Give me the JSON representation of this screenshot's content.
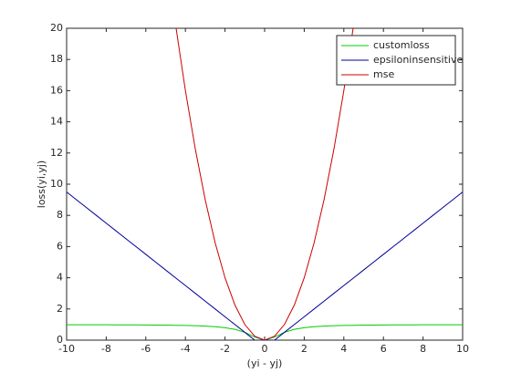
{
  "chart_data": {
    "type": "line",
    "xlabel": "(yi - yj)",
    "ylabel": "loss(yi,yj)",
    "x": [
      -10,
      -9.5,
      -9,
      -8.5,
      -8,
      -7.5,
      -7,
      -6.5,
      -6,
      -5.5,
      -5,
      -4.5,
      -4,
      -3.5,
      -3,
      -2.5,
      -2,
      -1.5,
      -1,
      -0.5,
      0,
      0.5,
      1,
      1.5,
      2,
      2.5,
      3,
      3.5,
      4,
      4.5,
      5,
      5.5,
      6,
      6.5,
      7,
      7.5,
      8,
      8.5,
      9,
      9.5,
      10
    ],
    "series": [
      {
        "name": "customloss",
        "color": "#00cc00",
        "values": [
          0.99,
          0.989,
          0.988,
          0.986,
          0.985,
          0.983,
          0.98,
          0.977,
          0.973,
          0.968,
          0.962,
          0.953,
          0.941,
          0.925,
          0.9,
          0.862,
          0.8,
          0.692,
          0.5,
          0.2,
          0,
          0.2,
          0.5,
          0.692,
          0.8,
          0.862,
          0.9,
          0.925,
          0.941,
          0.953,
          0.962,
          0.968,
          0.973,
          0.977,
          0.98,
          0.983,
          0.985,
          0.986,
          0.988,
          0.989,
          0.99
        ]
      },
      {
        "name": "epsiloninsensitive",
        "color": "#000099",
        "values": [
          9.5,
          9,
          8.5,
          8,
          7.5,
          7,
          6.5,
          6,
          5.5,
          5,
          4.5,
          4,
          3.5,
          3,
          2.5,
          2,
          1.5,
          1,
          0.5,
          0,
          0,
          0,
          0.5,
          1,
          1.5,
          2,
          2.5,
          3,
          3.5,
          4,
          4.5,
          5,
          5.5,
          6,
          6.5,
          7,
          7.5,
          8,
          8.5,
          9,
          9.5
        ]
      },
      {
        "name": "mse",
        "color": "#cc0000",
        "values": [
          null,
          null,
          null,
          null,
          null,
          null,
          null,
          null,
          null,
          null,
          null,
          20.25,
          16,
          12.25,
          9,
          6.25,
          4,
          2.25,
          1,
          0.25,
          0,
          0.25,
          1,
          2.25,
          4,
          6.25,
          9,
          12.25,
          16,
          20.25,
          null,
          null,
          null,
          null,
          null,
          null,
          null,
          null,
          null,
          null,
          null
        ]
      }
    ],
    "xlim": [
      -10,
      10
    ],
    "ylim": [
      0,
      20
    ],
    "xticks": [
      -10,
      -8,
      -6,
      -4,
      -2,
      0,
      2,
      4,
      6,
      8,
      10
    ],
    "yticks": [
      0,
      2,
      4,
      6,
      8,
      10,
      12,
      14,
      16,
      18,
      20
    ],
    "grid": false,
    "legend": "northeast"
  }
}
